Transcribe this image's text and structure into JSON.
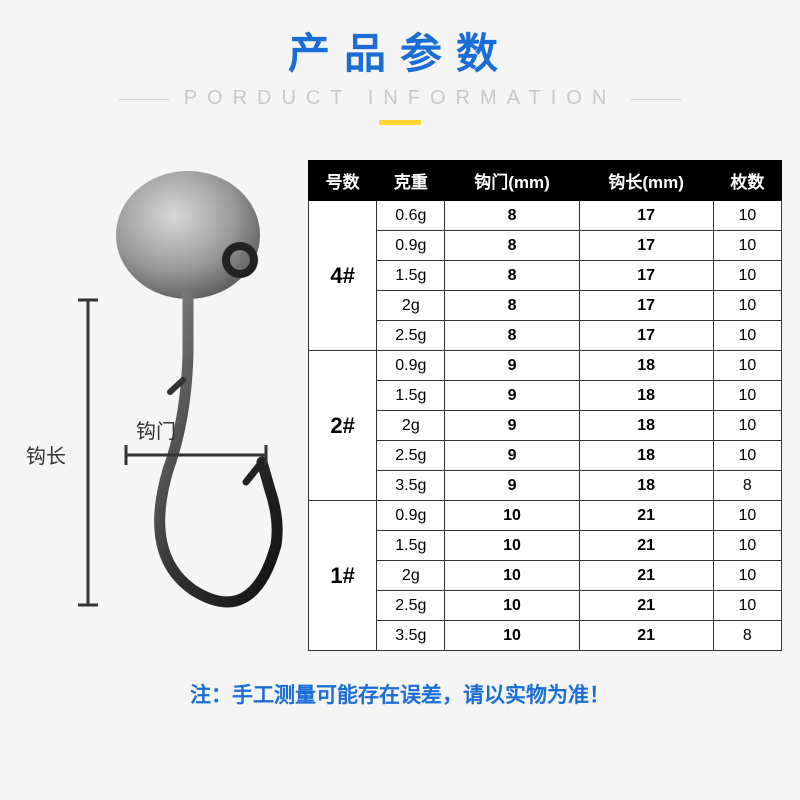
{
  "header": {
    "title_cn": "产品参数",
    "title_en": "PORDUCT INFORMATION"
  },
  "diagram": {
    "label_length": "钩长",
    "label_gap": "钩门"
  },
  "table": {
    "headers": [
      "号数",
      "克重",
      "钩门(mm)",
      "钩长(mm)",
      "枚数"
    ],
    "groups": [
      {
        "size": "4#",
        "rows": [
          {
            "weight": "0.6g",
            "gap": "8",
            "length": "17",
            "count": "10"
          },
          {
            "weight": "0.9g",
            "gap": "8",
            "length": "17",
            "count": "10"
          },
          {
            "weight": "1.5g",
            "gap": "8",
            "length": "17",
            "count": "10"
          },
          {
            "weight": "2g",
            "gap": "8",
            "length": "17",
            "count": "10"
          },
          {
            "weight": "2.5g",
            "gap": "8",
            "length": "17",
            "count": "10"
          }
        ]
      },
      {
        "size": "2#",
        "rows": [
          {
            "weight": "0.9g",
            "gap": "9",
            "length": "18",
            "count": "10"
          },
          {
            "weight": "1.5g",
            "gap": "9",
            "length": "18",
            "count": "10"
          },
          {
            "weight": "2g",
            "gap": "9",
            "length": "18",
            "count": "10"
          },
          {
            "weight": "2.5g",
            "gap": "9",
            "length": "18",
            "count": "10"
          },
          {
            "weight": "3.5g",
            "gap": "9",
            "length": "18",
            "count": "8"
          }
        ]
      },
      {
        "size": "1#",
        "rows": [
          {
            "weight": "0.9g",
            "gap": "10",
            "length": "21",
            "count": "10"
          },
          {
            "weight": "1.5g",
            "gap": "10",
            "length": "21",
            "count": "10"
          },
          {
            "weight": "2g",
            "gap": "10",
            "length": "21",
            "count": "10"
          },
          {
            "weight": "2.5g",
            "gap": "10",
            "length": "21",
            "count": "10"
          },
          {
            "weight": "3.5g",
            "gap": "10",
            "length": "21",
            "count": "8"
          }
        ]
      }
    ]
  },
  "note": "注：手工测量可能存在误差，请以实物为准！",
  "colors": {
    "accent": "#1a6dd6",
    "underline": "#ffd633",
    "header_bg": "#000000",
    "bg": "#f5f5f5"
  }
}
